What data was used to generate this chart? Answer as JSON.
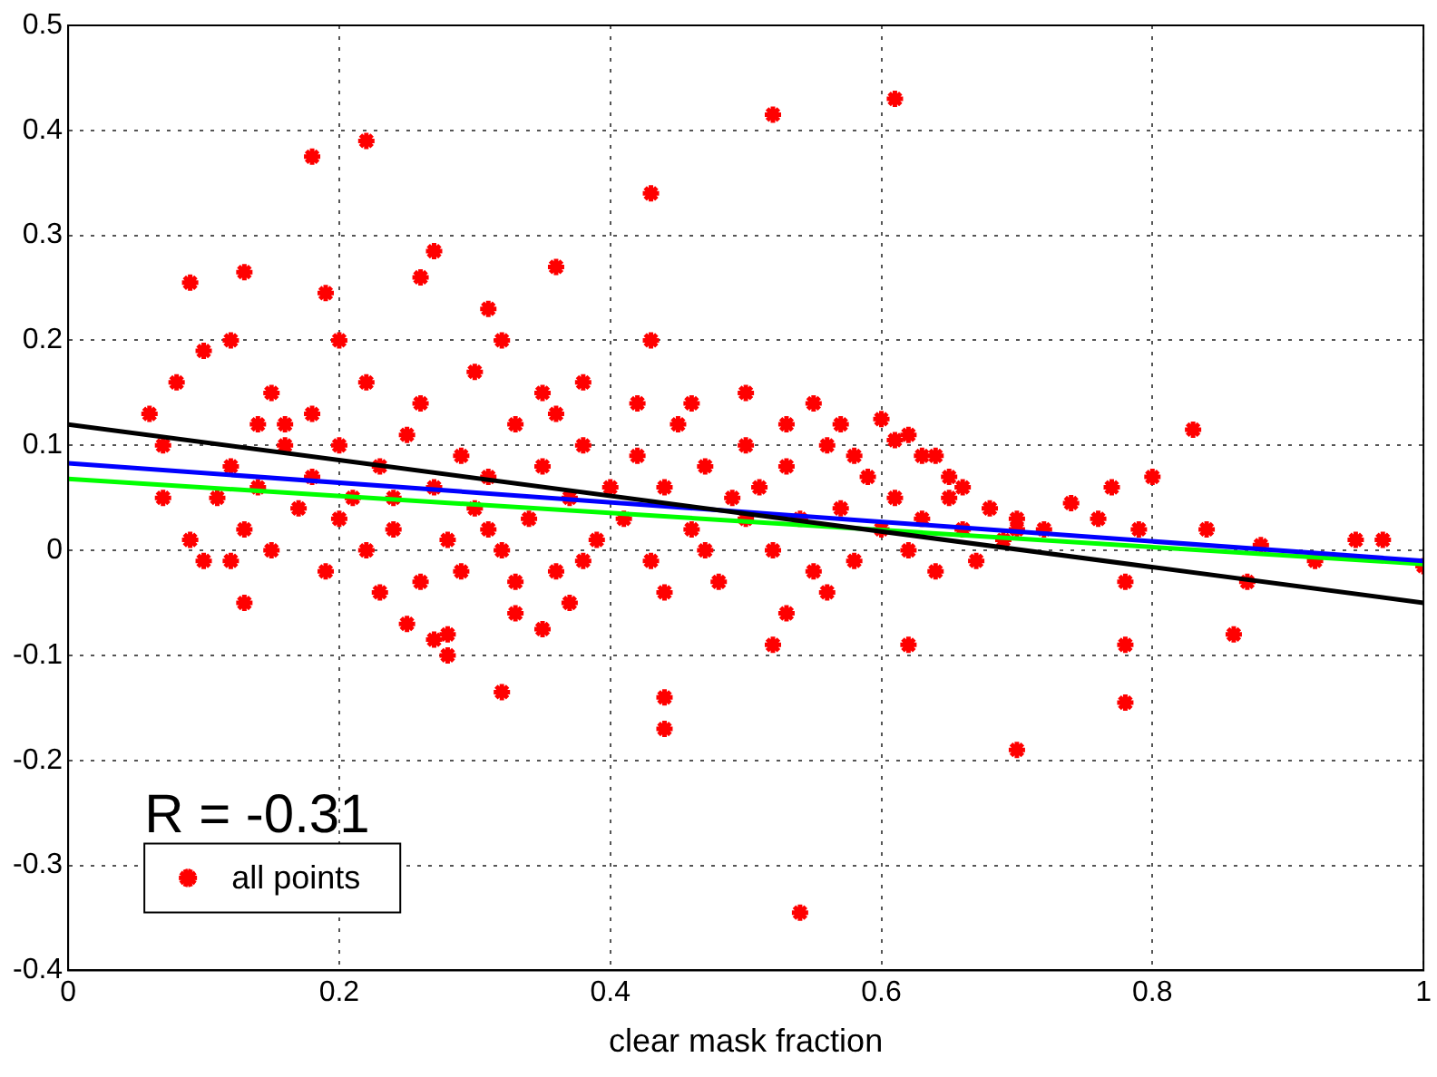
{
  "chart_data": {
    "type": "scatter",
    "xlabel": "clear mask fraction",
    "xlim": [
      0,
      1
    ],
    "xticks": [
      0,
      0.2,
      0.4,
      0.6,
      0.8,
      1
    ],
    "ylim": [
      -0.4,
      0.5
    ],
    "yticks": [
      -0.4,
      -0.3,
      -0.2,
      -0.1,
      0,
      0.1,
      0.2,
      0.3,
      0.4,
      0.5
    ],
    "grid": true,
    "legend": "bottom left",
    "annotations": [
      "R = -0.31"
    ],
    "series": [
      {
        "name": "all points",
        "color": "#ff0000",
        "marker": "cross",
        "x": [
          0.18,
          0.22,
          0.52,
          0.61,
          0.43,
          0.19,
          0.27,
          0.26,
          0.31,
          0.36,
          0.09,
          0.13,
          0.43,
          0.83,
          0.54,
          0.7,
          0.78,
          0.44,
          0.44,
          0.32,
          0.78,
          0.86,
          0.13,
          0.97,
          1.0,
          0.95,
          0.88,
          0.92,
          0.87,
          0.62,
          0.52,
          0.53,
          0.28,
          0.25,
          0.33,
          0.35,
          0.37,
          0.28,
          0.27,
          0.79,
          0.78,
          0.77,
          0.76,
          0.8,
          0.74,
          0.72,
          0.84,
          0.7,
          0.66,
          0.65,
          0.63,
          0.57,
          0.55,
          0.6,
          0.61,
          0.08,
          0.1,
          0.12,
          0.2,
          0.15,
          0.22,
          0.38,
          0.35,
          0.3,
          0.32,
          0.46,
          0.5,
          0.06,
          0.07,
          0.09,
          0.1,
          0.07,
          0.14,
          0.11,
          0.12,
          0.13,
          0.14,
          0.15,
          0.16,
          0.17,
          0.18,
          0.19,
          0.2,
          0.12,
          0.16,
          0.18,
          0.2,
          0.21,
          0.22,
          0.23,
          0.24,
          0.25,
          0.26,
          0.27,
          0.28,
          0.29,
          0.3,
          0.23,
          0.26,
          0.29,
          0.24,
          0.31,
          0.32,
          0.33,
          0.34,
          0.35,
          0.36,
          0.37,
          0.38,
          0.39,
          0.4,
          0.33,
          0.36,
          0.31,
          0.38,
          0.41,
          0.42,
          0.43,
          0.44,
          0.45,
          0.46,
          0.47,
          0.48,
          0.49,
          0.5,
          0.42,
          0.47,
          0.44,
          0.5,
          0.51,
          0.52,
          0.53,
          0.54,
          0.55,
          0.56,
          0.57,
          0.58,
          0.59,
          0.6,
          0.53,
          0.56,
          0.58,
          0.61,
          0.62,
          0.63,
          0.64,
          0.65,
          0.66,
          0.67,
          0.68,
          0.69,
          0.7,
          0.64,
          0.62
        ],
        "values": [
          0.375,
          0.39,
          0.415,
          0.43,
          0.34,
          0.245,
          0.285,
          0.26,
          0.23,
          0.27,
          0.255,
          0.265,
          0.2,
          0.115,
          -0.345,
          -0.19,
          -0.145,
          -0.14,
          -0.17,
          -0.135,
          -0.09,
          -0.08,
          -0.05,
          0.01,
          -0.015,
          0.01,
          0.005,
          -0.01,
          -0.03,
          -0.09,
          -0.09,
          -0.06,
          -0.1,
          -0.07,
          -0.06,
          -0.075,
          -0.05,
          -0.08,
          -0.085,
          0.02,
          -0.03,
          0.06,
          0.03,
          0.07,
          0.045,
          0.02,
          0.02,
          0.02,
          0.06,
          0.05,
          0.09,
          0.12,
          0.14,
          0.125,
          0.105,
          0.16,
          0.19,
          0.2,
          0.2,
          0.15,
          0.16,
          0.16,
          0.15,
          0.17,
          0.2,
          0.14,
          0.15,
          0.13,
          0.05,
          0.01,
          -0.01,
          0.1,
          0.12,
          0.05,
          0.08,
          0.02,
          0.06,
          0.0,
          0.1,
          0.04,
          0.07,
          -0.02,
          0.03,
          -0.01,
          0.12,
          0.13,
          0.1,
          0.05,
          0.0,
          0.08,
          0.02,
          0.11,
          -0.03,
          0.06,
          0.01,
          0.09,
          0.04,
          -0.04,
          0.14,
          -0.02,
          0.05,
          0.07,
          0.0,
          0.12,
          0.03,
          0.08,
          -0.02,
          0.05,
          0.1,
          0.01,
          0.06,
          -0.03,
          0.13,
          0.02,
          -0.01,
          0.03,
          0.09,
          -0.01,
          0.06,
          0.12,
          0.02,
          0.08,
          -0.03,
          0.05,
          0.1,
          0.14,
          0.0,
          -0.04,
          0.03,
          0.06,
          0.0,
          0.08,
          0.03,
          -0.02,
          0.1,
          0.04,
          -0.01,
          0.07,
          0.02,
          0.12,
          -0.04,
          0.09,
          0.05,
          0.0,
          0.03,
          -0.02,
          0.07,
          0.02,
          -0.01,
          0.04,
          0.01,
          0.03,
          0.09,
          0.11
        ]
      },
      {
        "type": "line",
        "color": "#000000",
        "marker": "none",
        "x": [
          0,
          1
        ],
        "values": [
          0.12,
          -0.05
        ]
      },
      {
        "type": "line",
        "color": "#0000ff",
        "marker": "none",
        "x": [
          0,
          1
        ],
        "values": [
          0.083,
          -0.01
        ]
      },
      {
        "type": "line",
        "color": "#00ff00",
        "marker": "none",
        "x": [
          0,
          1
        ],
        "values": [
          0.068,
          -0.013
        ]
      }
    ]
  }
}
